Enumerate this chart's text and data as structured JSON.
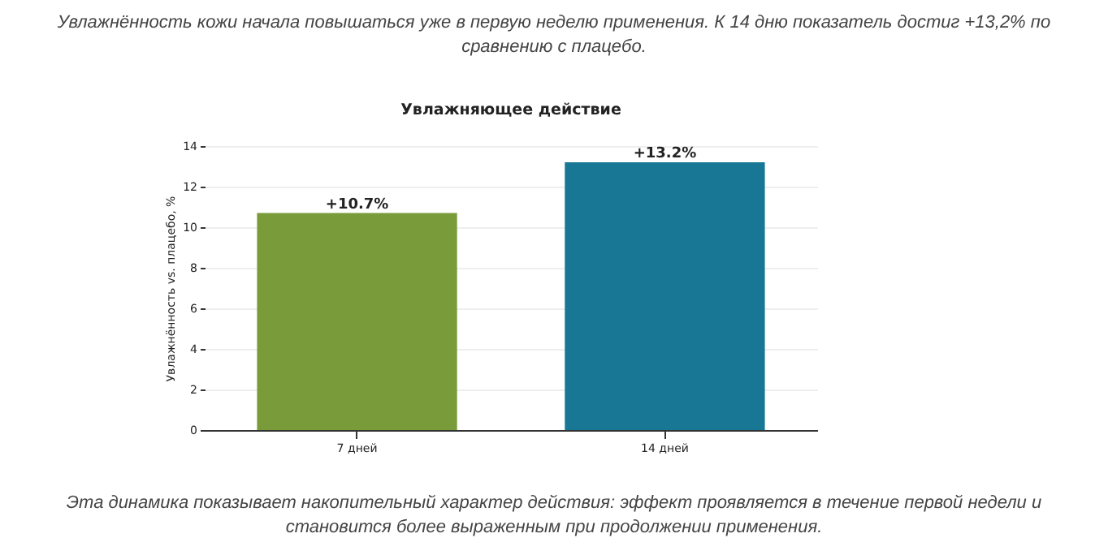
{
  "chart_data": {
    "type": "bar",
    "title": "Увлажняющее действие",
    "ylabel": "Увлажнённость vs. плацебо, %",
    "categories": [
      "7 дней",
      "14 дней"
    ],
    "values": [
      10.7,
      13.2
    ],
    "colors": [
      "#799b3a",
      "#187795"
    ],
    "value_labels": [
      "+10.7%",
      "+13.2%"
    ],
    "ylim": [
      0,
      14
    ],
    "yticks": [
      0,
      2,
      4,
      6,
      8,
      10,
      12,
      14
    ],
    "grid": "y",
    "annotations": [
      "Увлажнённость кожи начала повышаться уже в первую неделю применения. К 14 дню показатель достиг +13,2% по сравнению с плацебо.",
      "Эта динамика показывает накопительный характер действия: эффект проявляется в течение первой недели и становится более выраженным при продолжении применения."
    ]
  }
}
